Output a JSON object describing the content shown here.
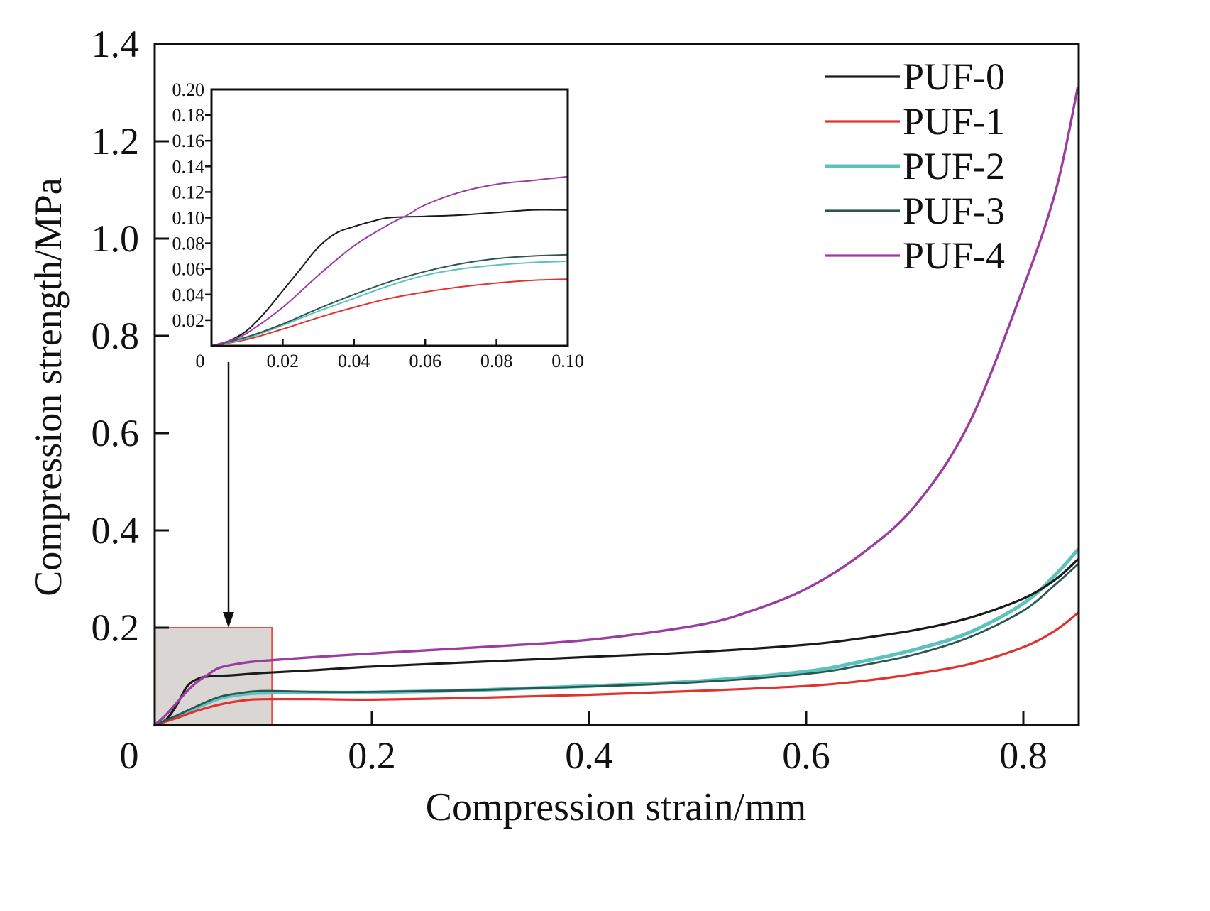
{
  "chart_data": {
    "type": "line",
    "title": "",
    "xlabel": "Compression strain/mm",
    "ylabel": "Compression strength/MPa",
    "xlim": [
      0,
      0.85
    ],
    "ylim": [
      0,
      1.4
    ],
    "xticks": [
      0,
      0.2,
      0.4,
      0.6,
      0.8
    ],
    "xtick_labels": [
      "0",
      "0.2",
      "0.4",
      "0.6",
      "0.8"
    ],
    "yticks": [
      0.2,
      0.4,
      0.6,
      0.8,
      1.0,
      1.2,
      1.4
    ],
    "ytick_labels": [
      "0.2",
      "0.4",
      "0.6",
      "0.8",
      "1.0",
      "1.2",
      "1.4"
    ],
    "grid": false,
    "legend_position": "top-right",
    "highlight_region": {
      "x": [
        0,
        0.108
      ],
      "y": [
        0,
        0.2
      ],
      "fill": "#d9d6d3",
      "stroke": "#e8514a"
    },
    "series": [
      {
        "name": "PUF-0",
        "color": "#1a1a1a",
        "x": [
          0,
          0.01,
          0.02,
          0.03,
          0.04,
          0.05,
          0.07,
          0.1,
          0.15,
          0.2,
          0.3,
          0.4,
          0.5,
          0.6,
          0.65,
          0.7,
          0.75,
          0.8,
          0.83,
          0.85
        ],
        "y": [
          0,
          0.01,
          0.04,
          0.08,
          0.095,
          0.1,
          0.102,
          0.107,
          0.113,
          0.12,
          0.13,
          0.14,
          0.15,
          0.165,
          0.178,
          0.195,
          0.22,
          0.26,
          0.3,
          0.34
        ]
      },
      {
        "name": "PUF-1",
        "color": "#e0322e",
        "x": [
          0,
          0.02,
          0.04,
          0.06,
          0.08,
          0.1,
          0.15,
          0.2,
          0.3,
          0.4,
          0.5,
          0.6,
          0.65,
          0.7,
          0.75,
          0.8,
          0.83,
          0.85
        ],
        "y": [
          0,
          0.014,
          0.03,
          0.042,
          0.05,
          0.053,
          0.053,
          0.052,
          0.056,
          0.062,
          0.07,
          0.08,
          0.09,
          0.105,
          0.125,
          0.16,
          0.195,
          0.23
        ]
      },
      {
        "name": "PUF-2",
        "color": "#5bc2bd",
        "x": [
          0,
          0.02,
          0.04,
          0.06,
          0.08,
          0.1,
          0.15,
          0.2,
          0.3,
          0.4,
          0.5,
          0.6,
          0.65,
          0.7,
          0.75,
          0.8,
          0.83,
          0.85
        ],
        "y": [
          0,
          0.018,
          0.037,
          0.055,
          0.063,
          0.066,
          0.067,
          0.067,
          0.072,
          0.08,
          0.09,
          0.11,
          0.13,
          0.155,
          0.19,
          0.25,
          0.31,
          0.36
        ]
      },
      {
        "name": "PUF-3",
        "color": "#2b5752",
        "x": [
          0,
          0.02,
          0.04,
          0.06,
          0.08,
          0.1,
          0.15,
          0.2,
          0.3,
          0.4,
          0.5,
          0.6,
          0.65,
          0.7,
          0.75,
          0.8,
          0.83,
          0.85
        ],
        "y": [
          0,
          0.019,
          0.04,
          0.058,
          0.066,
          0.07,
          0.068,
          0.068,
          0.072,
          0.079,
          0.088,
          0.105,
          0.122,
          0.145,
          0.18,
          0.235,
          0.29,
          0.33
        ]
      },
      {
        "name": "PUF-4",
        "color": "#9b3da0",
        "x": [
          0,
          0.01,
          0.02,
          0.03,
          0.04,
          0.05,
          0.06,
          0.08,
          0.1,
          0.15,
          0.2,
          0.3,
          0.4,
          0.5,
          0.55,
          0.6,
          0.65,
          0.7,
          0.75,
          0.8,
          0.83,
          0.85
        ],
        "y": [
          0,
          0.02,
          0.045,
          0.07,
          0.09,
          0.105,
          0.118,
          0.127,
          0.132,
          0.14,
          0.147,
          0.16,
          0.175,
          0.205,
          0.235,
          0.28,
          0.35,
          0.45,
          0.62,
          0.9,
          1.1,
          1.31
        ]
      }
    ],
    "inset": {
      "xlim": [
        0,
        0.1
      ],
      "ylim": [
        0,
        0.2
      ],
      "xticks": [
        0,
        0.02,
        0.04,
        0.06,
        0.08,
        0.1
      ],
      "xtick_labels": [
        "0",
        "0.02",
        "0.04",
        "0.06",
        "0.08",
        "0.10"
      ],
      "yticks": [
        0.02,
        0.04,
        0.06,
        0.08,
        0.1,
        0.12,
        0.14,
        0.16,
        0.18,
        0.2
      ],
      "ytick_labels": [
        "0.02",
        "0.04",
        "0.06",
        "0.08",
        "0.10",
        "0.12",
        "0.14",
        "0.16",
        "0.18",
        "0.20"
      ],
      "series": [
        {
          "name": "PUF-0",
          "x": [
            0,
            0.005,
            0.01,
            0.015,
            0.02,
            0.025,
            0.03,
            0.035,
            0.04,
            0.045,
            0.05,
            0.06,
            0.07,
            0.08,
            0.09,
            0.1
          ],
          "y": [
            0,
            0.004,
            0.012,
            0.026,
            0.043,
            0.06,
            0.077,
            0.088,
            0.093,
            0.097,
            0.1,
            0.101,
            0.102,
            0.104,
            0.106,
            0.106
          ]
        },
        {
          "name": "PUF-1",
          "x": [
            0,
            0.01,
            0.02,
            0.03,
            0.04,
            0.05,
            0.06,
            0.07,
            0.08,
            0.09,
            0.1
          ],
          "y": [
            0,
            0.005,
            0.013,
            0.022,
            0.03,
            0.037,
            0.042,
            0.046,
            0.049,
            0.051,
            0.052
          ]
        },
        {
          "name": "PUF-2",
          "x": [
            0,
            0.01,
            0.02,
            0.03,
            0.04,
            0.05,
            0.06,
            0.07,
            0.08,
            0.09,
            0.1
          ],
          "y": [
            0,
            0.006,
            0.016,
            0.027,
            0.037,
            0.047,
            0.055,
            0.06,
            0.063,
            0.065,
            0.066
          ]
        },
        {
          "name": "PUF-3",
          "x": [
            0,
            0.01,
            0.02,
            0.03,
            0.04,
            0.05,
            0.06,
            0.07,
            0.08,
            0.09,
            0.1
          ],
          "y": [
            0,
            0.007,
            0.017,
            0.029,
            0.04,
            0.05,
            0.058,
            0.064,
            0.068,
            0.07,
            0.071
          ]
        },
        {
          "name": "PUF-4",
          "x": [
            0,
            0.005,
            0.01,
            0.02,
            0.03,
            0.04,
            0.05,
            0.055,
            0.06,
            0.07,
            0.08,
            0.09,
            0.1
          ],
          "y": [
            0,
            0.004,
            0.01,
            0.03,
            0.055,
            0.078,
            0.095,
            0.102,
            0.11,
            0.12,
            0.126,
            0.129,
            0.132
          ]
        }
      ]
    }
  }
}
